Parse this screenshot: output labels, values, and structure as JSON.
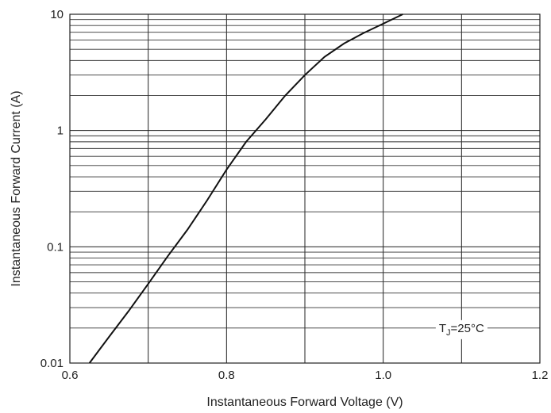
{
  "chart_data": {
    "type": "line",
    "title": "",
    "xlabel": "Instantaneous Forward Voltage (V)",
    "ylabel": "Instantaneous Forward Current (A)",
    "xlim": [
      0.6,
      1.2
    ],
    "ylim": [
      0.01,
      10
    ],
    "y_scale": "log",
    "grid": true,
    "x_ticks": [
      0.6,
      0.8,
      1.0,
      1.2
    ],
    "x_tick_labels": [
      "0.6",
      "0.8",
      "1.0",
      "1.2"
    ],
    "y_ticks": [
      0.01,
      0.1,
      1,
      10
    ],
    "y_tick_labels": [
      "0.01",
      "0.1",
      "1",
      "10"
    ],
    "series": [
      {
        "x": [
          0.625,
          0.65,
          0.675,
          0.7,
          0.725,
          0.75,
          0.775,
          0.8,
          0.825,
          0.85,
          0.875,
          0.9,
          0.925,
          0.95,
          0.975,
          1.0,
          1.025
        ],
        "y": [
          0.01,
          0.0168,
          0.028,
          0.048,
          0.083,
          0.14,
          0.25,
          0.46,
          0.8,
          1.25,
          2.0,
          3.0,
          4.3,
          5.6,
          6.9,
          8.3,
          10.0
        ]
      }
    ],
    "annotation": {
      "prefix": "T",
      "subscript": "J",
      "suffix": "=25°C",
      "x": 1.1,
      "y": 0.02
    }
  }
}
